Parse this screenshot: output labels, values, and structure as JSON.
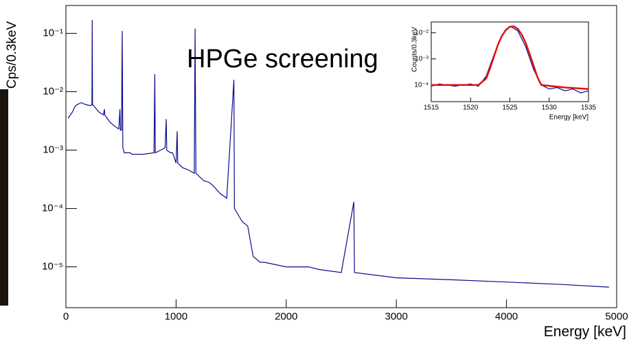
{
  "chart_data": [
    {
      "type": "line",
      "x_label": "Energy [keV]",
      "y_label": "Cps/0.3keV",
      "annotation": "HPGe screening",
      "log_y": true,
      "color": "#0a0a8c",
      "xlim": [
        0,
        5000
      ],
      "xticks": [
        0,
        1000,
        2000,
        3000,
        4000,
        5000
      ],
      "ylim": [
        2e-06,
        0.3
      ],
      "yticks": [
        {
          "value": 1e-05,
          "label": "10⁻⁵"
        },
        {
          "value": 0.0001,
          "label": "10⁻⁴"
        },
        {
          "value": 0.001,
          "label": "10⁻³"
        },
        {
          "value": 0.01,
          "label": "10⁻²"
        },
        {
          "value": 0.1,
          "label": "10⁻¹"
        }
      ],
      "x": [
        20,
        40,
        60,
        80,
        100,
        140,
        180,
        220,
        236,
        239,
        242,
        260,
        300,
        340,
        350,
        352,
        400,
        450,
        480,
        490,
        495,
        505,
        511,
        517,
        530,
        583,
        600,
        700,
        800,
        807,
        812,
        860,
        900,
        911,
        915,
        950,
        969,
        1000,
        1010,
        1015,
        1060,
        1120,
        1165,
        1173,
        1180,
        1250,
        1300,
        1332,
        1400,
        1460,
        1525,
        1530,
        1600,
        1650,
        1700,
        1764,
        1800,
        2000,
        2204,
        2300,
        2500,
        2614,
        2620,
        3000,
        3500,
        4000,
        4500,
        4930
      ],
      "values": [
        0.0035,
        0.004,
        0.0045,
        0.0055,
        0.006,
        0.0065,
        0.006,
        0.0058,
        0.006,
        0.17,
        0.006,
        0.0055,
        0.0045,
        0.004,
        0.005,
        0.004,
        0.003,
        0.0025,
        0.0023,
        0.005,
        0.0022,
        0.0022,
        0.11,
        0.0011,
        0.0009,
        0.0009,
        0.00085,
        0.00085,
        0.0009,
        0.02,
        0.0009,
        0.001,
        0.0011,
        0.0034,
        0.001,
        0.0009,
        0.0009,
        0.0006,
        0.0021,
        0.0006,
        0.0005,
        0.00045,
        0.0004,
        0.12,
        0.0004,
        0.0003,
        0.00028,
        0.00025,
        0.00018,
        0.00015,
        0.016,
        0.0001,
        6e-05,
        5e-05,
        1.5e-05,
        1.2e-05,
        1.2e-05,
        1e-05,
        1e-05,
        9e-06,
        8e-06,
        0.00013,
        8e-06,
        6.5e-06,
        6e-06,
        5.5e-06,
        5e-06,
        4.5e-06
      ]
    },
    {
      "type": "line",
      "x_label": "Energy [keV]",
      "y_label": "Counts/0.3keV",
      "log_y": true,
      "xlim": [
        1515,
        1535
      ],
      "xticks": [
        1515,
        1520,
        1525,
        1530,
        1535
      ],
      "ylim": [
        2.3e-05,
        0.026
      ],
      "yticks": [
        {
          "value": 0.0001,
          "label": "10⁻⁴"
        },
        {
          "value": 0.001,
          "label": "10⁻³"
        },
        {
          "value": 0.01,
          "label": "10⁻²"
        }
      ],
      "series": [
        {
          "color": "#0a0a8c",
          "x": [
            1515,
            1516,
            1517,
            1518,
            1519,
            1520,
            1521,
            1522,
            1523,
            1524,
            1525,
            1526,
            1527,
            1528,
            1529,
            1530,
            1531,
            1532,
            1533,
            1534,
            1535
          ],
          "values": [
            9e-05,
            0.00011,
            0.0001,
            9e-05,
            0.0001,
            0.00011,
            9e-05,
            0.00022,
            0.0015,
            0.008,
            0.018,
            0.012,
            0.003,
            0.0004,
            0.0001,
            7e-05,
            8e-05,
            6e-05,
            7e-05,
            5e-05,
            6e-05
          ]
        },
        {
          "color": "#e01010",
          "x": [
            1515,
            1518,
            1521,
            1522,
            1522.5,
            1523,
            1523.5,
            1524,
            1524.5,
            1525,
            1525.5,
            1526,
            1526.5,
            1527,
            1527.5,
            1528,
            1528.5,
            1529,
            1532,
            1535
          ],
          "values": [
            0.0001,
            0.0001,
            0.0001,
            0.00018,
            0.00046,
            0.0013,
            0.0036,
            0.0077,
            0.013,
            0.017,
            0.0177,
            0.014,
            0.0087,
            0.0042,
            0.0016,
            0.00057,
            0.0002,
            0.0001,
            8e-05,
            7e-05
          ]
        }
      ]
    }
  ]
}
